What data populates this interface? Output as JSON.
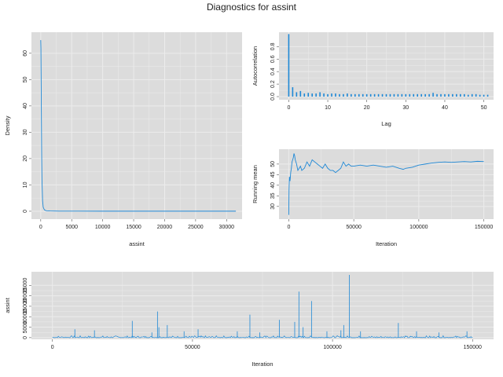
{
  "title": "Diagnostics for assint",
  "colors": {
    "panel": "#dcdcdc",
    "grid": "#ececec",
    "line": "#1e88d6",
    "tickmark": "#555555"
  },
  "chart_data": [
    {
      "id": "density",
      "type": "line",
      "xlabel": "assint",
      "ylabel": "Density",
      "xlim": [
        -1500,
        32500
      ],
      "ylim": [
        -3,
        68
      ],
      "xticks": [
        0,
        5000,
        10000,
        15000,
        20000,
        25000,
        30000
      ],
      "yticks": [
        0,
        10,
        20,
        30,
        40,
        50,
        60
      ],
      "series": [
        {
          "x": [
            0,
            30,
            60,
            100,
            150,
            200,
            300,
            400,
            600,
            900,
            1500,
            3000,
            6000,
            10000,
            15000,
            20000,
            25000,
            31500
          ],
          "y": [
            65,
            62,
            52,
            38,
            22,
            12,
            4,
            1.5,
            0.5,
            0.2,
            0.1,
            0.05,
            0.03,
            0.02,
            0.02,
            0.02,
            0.02,
            0.02
          ]
        }
      ]
    },
    {
      "id": "acf",
      "type": "bar",
      "xlabel": "Lag",
      "ylabel": "Autocorrelation",
      "xlim": [
        -2.5,
        52.5
      ],
      "ylim": [
        -0.05,
        1.03
      ],
      "xticks": [
        0,
        10,
        20,
        30,
        40,
        50
      ],
      "yticks": [
        0.0,
        0.2,
        0.4,
        0.6,
        0.8
      ],
      "ytick_labels": [
        "0.0",
        "0.2",
        "0.4",
        "0.6",
        "0.8"
      ],
      "x": [
        0,
        1,
        2,
        3,
        4,
        5,
        6,
        7,
        8,
        9,
        10,
        11,
        12,
        13,
        14,
        15,
        16,
        17,
        18,
        19,
        20,
        21,
        22,
        23,
        24,
        25,
        26,
        27,
        28,
        29,
        30,
        31,
        32,
        33,
        34,
        35,
        36,
        37,
        38,
        39,
        40,
        41,
        42,
        43,
        44,
        45,
        46,
        47,
        48,
        49,
        50,
        51
      ],
      "values": [
        1.0,
        0.15,
        0.07,
        0.09,
        0.05,
        0.06,
        0.05,
        0.05,
        0.07,
        0.05,
        0.04,
        0.05,
        0.05,
        0.04,
        0.04,
        0.05,
        0.04,
        0.04,
        0.04,
        0.04,
        0.04,
        0.04,
        0.04,
        0.04,
        0.04,
        0.04,
        0.04,
        0.04,
        0.04,
        0.04,
        0.04,
        0.04,
        0.04,
        0.04,
        0.04,
        0.04,
        0.04,
        0.06,
        0.04,
        0.04,
        0.04,
        0.04,
        0.04,
        0.04,
        0.04,
        0.04,
        0.03,
        0.04,
        0.04,
        0.03,
        0.03,
        0.03
      ]
    },
    {
      "id": "running-mean",
      "type": "line",
      "xlabel": "Iteration",
      "ylabel": "Running mean",
      "xlim": [
        -7500,
        157500
      ],
      "ylim": [
        24,
        57
      ],
      "xticks": [
        0,
        50000,
        100000,
        150000
      ],
      "yticks": [
        30,
        35,
        40,
        45,
        50
      ],
      "series": [
        {
          "x": [
            0,
            200,
            500,
            1000,
            1500,
            2000,
            2500,
            3000,
            3500,
            4000,
            4500,
            5000,
            6000,
            7000,
            8000,
            9000,
            10000,
            12000,
            14000,
            16000,
            18000,
            20000,
            22000,
            24000,
            26000,
            28000,
            30000,
            32000,
            34000,
            36000,
            38000,
            40000,
            42000,
            44000,
            46000,
            48000,
            50000,
            55000,
            60000,
            65000,
            70000,
            75000,
            80000,
            85000,
            88000,
            90000,
            95000,
            100000,
            105000,
            110000,
            115000,
            120000,
            125000,
            130000,
            135000,
            140000,
            145000,
            150000
          ],
          "y": [
            26,
            38,
            44,
            42,
            46,
            48,
            51,
            52,
            53,
            55,
            54,
            52,
            50,
            47,
            48,
            49,
            47,
            48,
            51,
            49,
            52,
            51,
            50,
            49,
            48,
            50,
            48,
            47,
            47,
            46,
            47,
            48,
            51,
            49,
            50,
            49,
            49,
            49.5,
            49,
            49.5,
            49,
            48.5,
            49,
            48,
            47.5,
            48,
            48.5,
            49.5,
            50,
            50.5,
            50.8,
            51,
            50.8,
            51,
            51.2,
            51,
            51.3,
            51.2
          ]
        }
      ]
    },
    {
      "id": "trace",
      "type": "line",
      "xlabel": "Iteration",
      "ylabel": "assint",
      "xlim": [
        -7500,
        157500
      ],
      "ylim": [
        -800,
        31500
      ],
      "xticks": [
        0,
        50000,
        100000,
        150000
      ],
      "yticks": [
        0,
        5000,
        10000,
        15000,
        20000,
        25000
      ],
      "baseline_max": 900,
      "spikes": [
        {
          "x": 8000,
          "y": 4000
        },
        {
          "x": 15000,
          "y": 3500
        },
        {
          "x": 28500,
          "y": 8000
        },
        {
          "x": 35500,
          "y": 2500
        },
        {
          "x": 37500,
          "y": 12500
        },
        {
          "x": 38000,
          "y": 5000
        },
        {
          "x": 41000,
          "y": 6000
        },
        {
          "x": 47000,
          "y": 3000
        },
        {
          "x": 52000,
          "y": 4000
        },
        {
          "x": 66000,
          "y": 3000
        },
        {
          "x": 70500,
          "y": 11000
        },
        {
          "x": 74000,
          "y": 2500
        },
        {
          "x": 81000,
          "y": 8500
        },
        {
          "x": 86500,
          "y": 7500
        },
        {
          "x": 88000,
          "y": 22000
        },
        {
          "x": 89500,
          "y": 5000
        },
        {
          "x": 92500,
          "y": 17500
        },
        {
          "x": 98000,
          "y": 3000
        },
        {
          "x": 103000,
          "y": 3500
        },
        {
          "x": 104000,
          "y": 6000
        },
        {
          "x": 106000,
          "y": 30000
        },
        {
          "x": 110000,
          "y": 3000
        },
        {
          "x": 123500,
          "y": 7000
        },
        {
          "x": 130000,
          "y": 3000
        },
        {
          "x": 138000,
          "y": 2500
        },
        {
          "x": 148000,
          "y": 3000
        }
      ]
    }
  ]
}
